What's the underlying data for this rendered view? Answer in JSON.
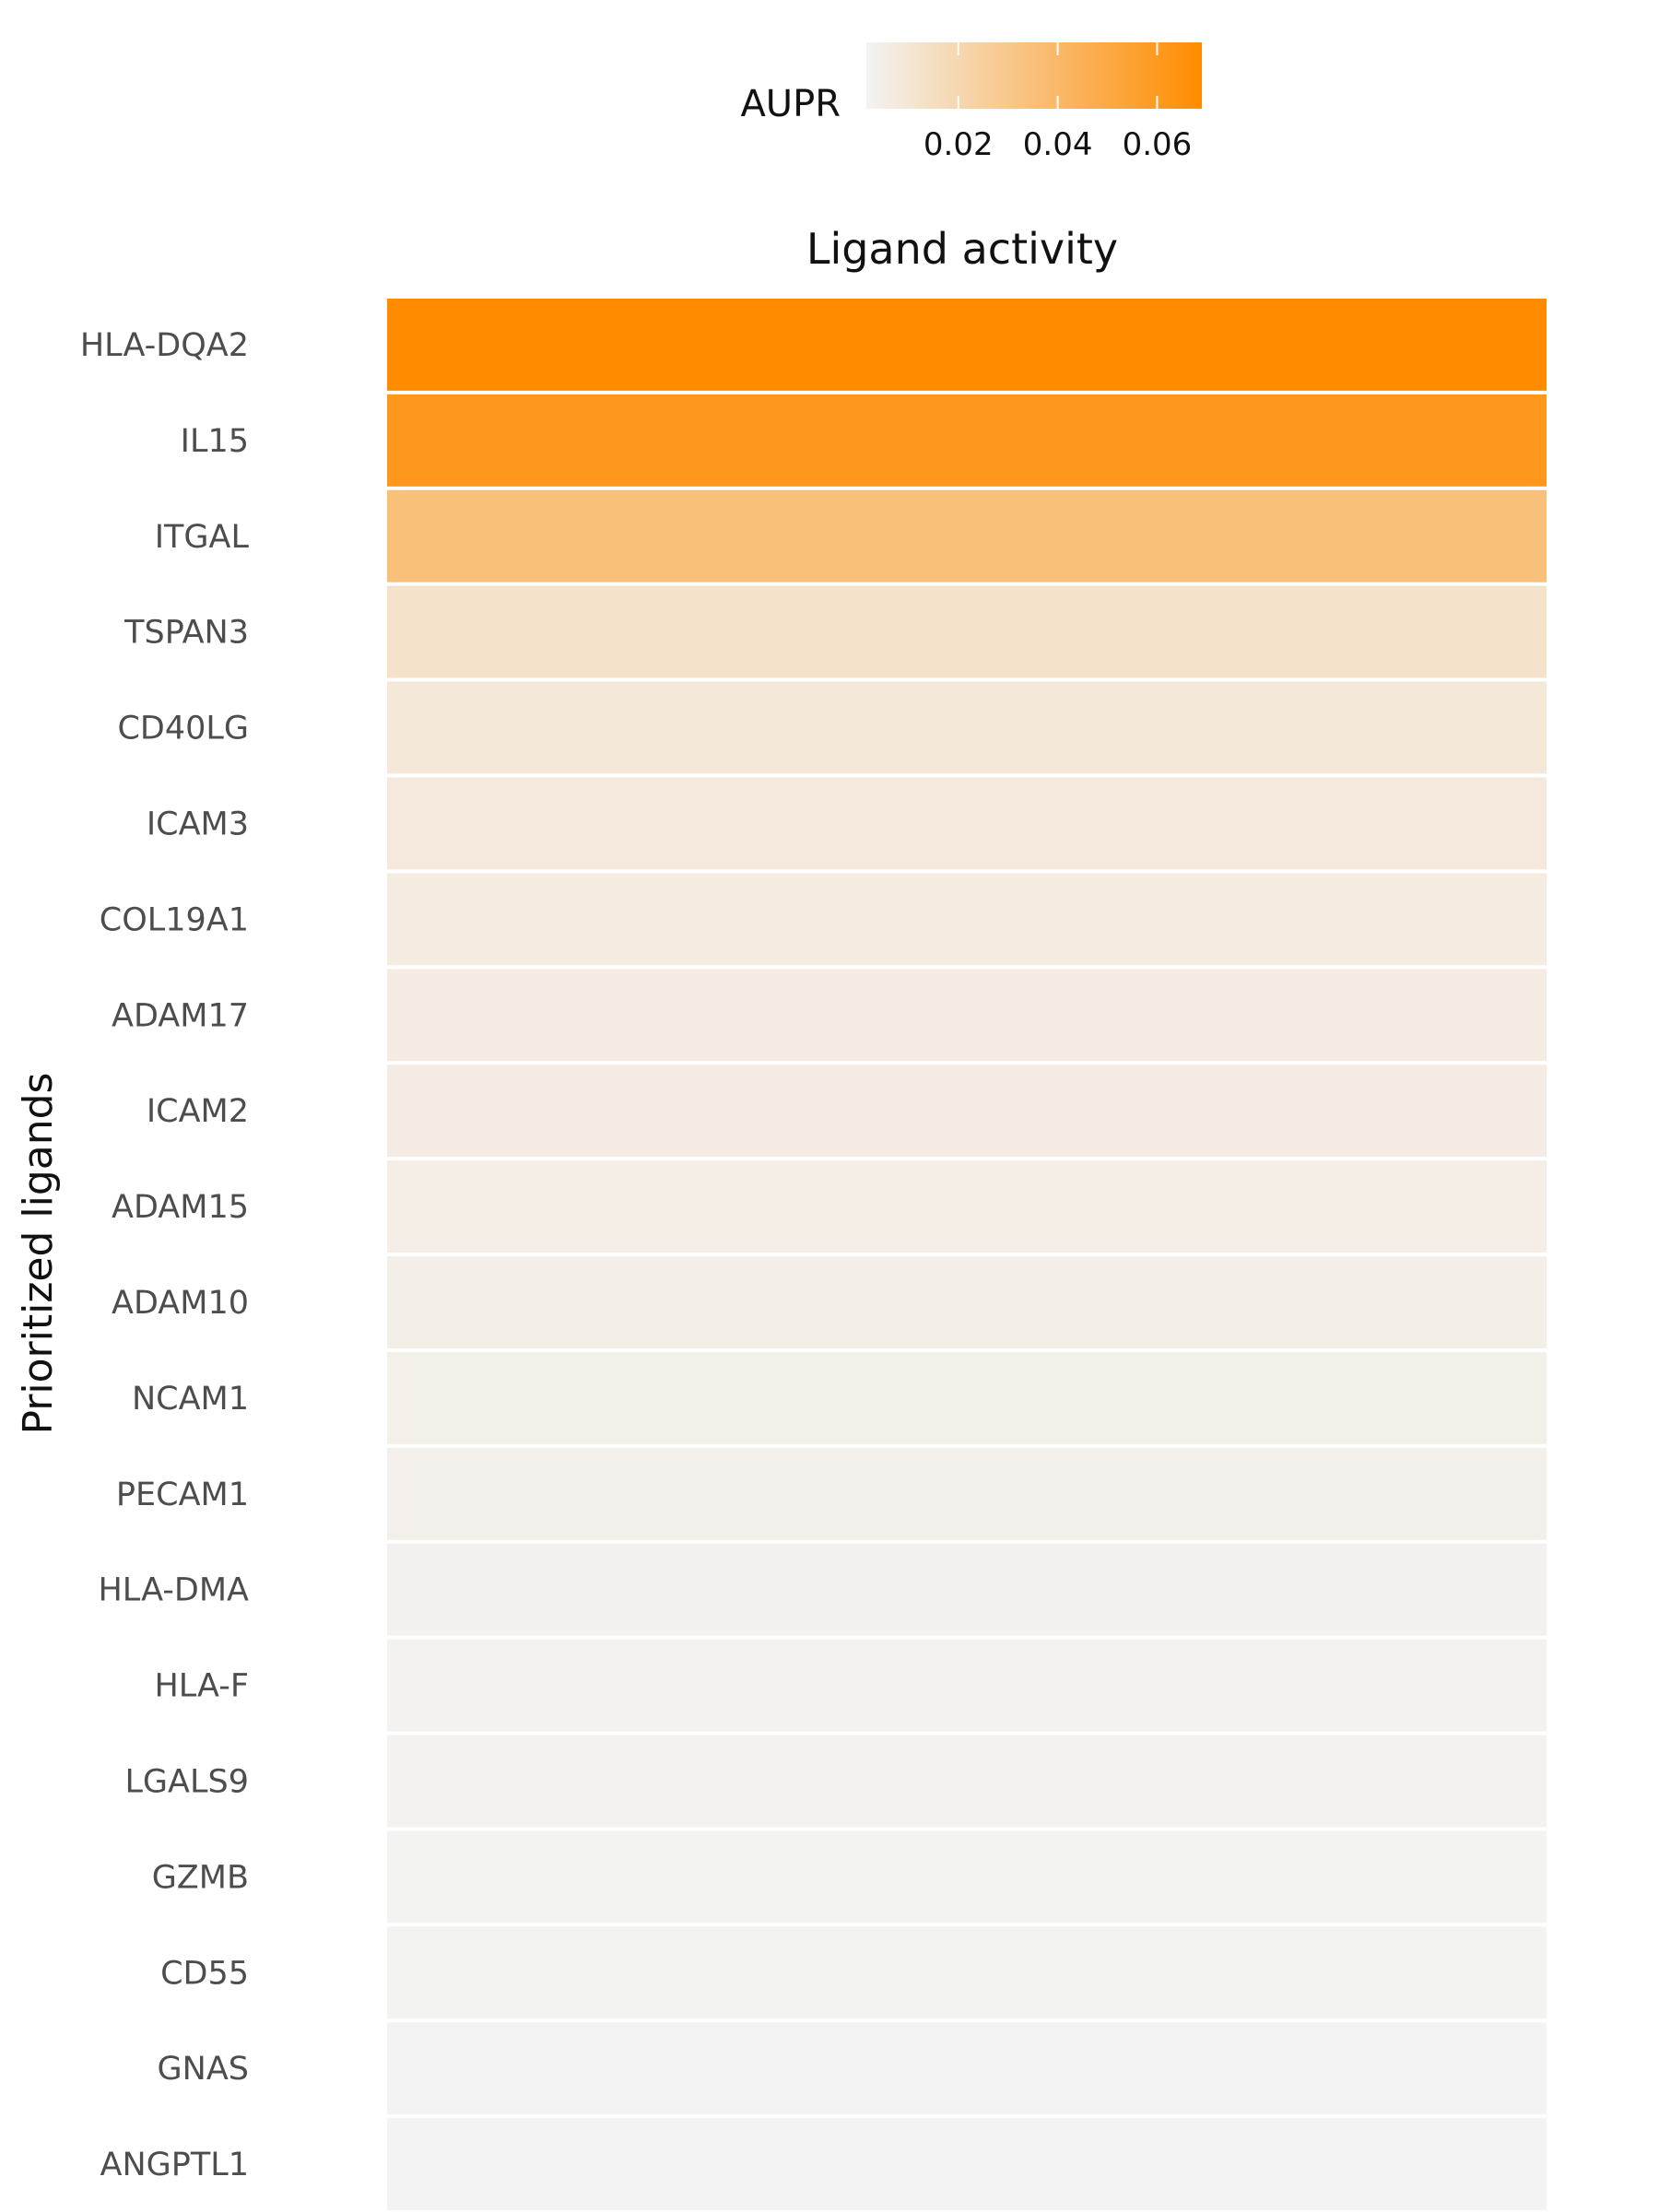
{
  "chart_data": {
    "type": "heatmap",
    "title": "Ligand activity",
    "ylabel": "Prioritized ligands",
    "xlabel": "",
    "columns": [
      ""
    ],
    "rows": [
      "HLA-DQA2",
      "IL15",
      "ITGAL",
      "TSPAN3",
      "CD40LG",
      "ICAM3",
      "COL19A1",
      "ADAM17",
      "ICAM2",
      "ADAM15",
      "ADAM10",
      "NCAM1",
      "PECAM1",
      "HLA-DMA",
      "HLA-F",
      "LGALS9",
      "GZMB",
      "CD55",
      "GNAS",
      "ANGPTL1"
    ],
    "values": [
      0.069,
      0.061,
      0.035,
      0.0125,
      0.009,
      0.008,
      0.0065,
      0.006,
      0.0058,
      0.005,
      0.0045,
      0.0043,
      0.004,
      0.0025,
      0.0023,
      0.002,
      0.0018,
      0.0017,
      0.0016,
      0.0015
    ],
    "legend": {
      "title": "AUPR",
      "position": "top",
      "ticks": [
        0.02,
        0.04,
        0.06
      ],
      "tick_labels": [
        "0.02",
        "0.04",
        "0.06"
      ],
      "range": [
        0.0015,
        0.069
      ],
      "color_low": "#f3f3f3",
      "color_high": "#ff8c00"
    },
    "grid": false
  }
}
